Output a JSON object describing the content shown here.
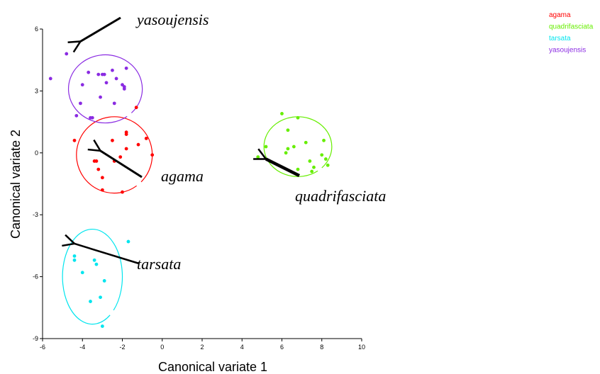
{
  "chart_data": {
    "type": "scatter",
    "title": "",
    "xlabel": "Canonical variate 1",
    "ylabel": "Canonical variate 2",
    "xlim": [
      -6,
      10
    ],
    "ylim": [
      -9,
      6
    ],
    "xticks": [
      -6,
      -4,
      -2,
      0,
      2,
      4,
      6,
      8,
      10
    ],
    "yticks": [
      -9,
      -6,
      -3,
      0,
      3,
      6
    ],
    "grid": false,
    "legend_position": "top-right",
    "series": [
      {
        "name": "agama",
        "color": "#ff0000",
        "points": [
          [
            -4.4,
            0.6
          ],
          [
            -3.4,
            -0.4
          ],
          [
            -3.3,
            -0.4
          ],
          [
            -3.0,
            -1.2
          ],
          [
            -3.2,
            -0.8
          ],
          [
            -3.0,
            -1.8
          ],
          [
            -2.5,
            0.6
          ],
          [
            -2.4,
            -0.4
          ],
          [
            -2.1,
            -0.2
          ],
          [
            -2.0,
            -1.9
          ],
          [
            -1.8,
            0.9
          ],
          [
            -1.8,
            1.0
          ],
          [
            -1.8,
            0.2
          ],
          [
            -1.3,
            2.2
          ],
          [
            -1.2,
            0.4
          ],
          [
            -0.8,
            0.7
          ],
          [
            -0.5,
            -0.1
          ]
        ],
        "ellipse": {
          "cx": -2.4,
          "cy": -0.1,
          "rx": 1.9,
          "ry": 1.85
        }
      },
      {
        "name": "quadrifasciata",
        "color": "#66ee00",
        "points": [
          [
            4.8,
            -0.2
          ],
          [
            5.2,
            0.3
          ],
          [
            6.0,
            1.9
          ],
          [
            6.2,
            0.0
          ],
          [
            6.3,
            1.1
          ],
          [
            6.3,
            0.2
          ],
          [
            6.6,
            0.3
          ],
          [
            6.8,
            1.7
          ],
          [
            6.8,
            -0.8
          ],
          [
            7.2,
            0.5
          ],
          [
            7.4,
            -0.4
          ],
          [
            7.5,
            -0.9
          ],
          [
            7.6,
            -0.7
          ],
          [
            8.0,
            -0.1
          ],
          [
            8.1,
            0.6
          ],
          [
            8.2,
            -0.3
          ],
          [
            8.3,
            -0.6
          ]
        ],
        "ellipse": {
          "cx": 6.8,
          "cy": 0.3,
          "rx": 1.7,
          "ry": 1.45
        }
      },
      {
        "name": "tarsata",
        "color": "#00e5ee",
        "points": [
          [
            -4.4,
            -5.0
          ],
          [
            -4.4,
            -5.2
          ],
          [
            -4.0,
            -5.8
          ],
          [
            -3.4,
            -5.2
          ],
          [
            -3.3,
            -5.4
          ],
          [
            -3.6,
            -7.2
          ],
          [
            -3.1,
            -7.0
          ],
          [
            -3.0,
            -8.4
          ],
          [
            -2.9,
            -6.2
          ],
          [
            -1.7,
            -4.3
          ]
        ],
        "ellipse": {
          "cx": -3.5,
          "cy": -6.0,
          "rx": 1.5,
          "ry": 2.3
        }
      },
      {
        "name": "yasoujensis",
        "color": "#8a2be2",
        "points": [
          [
            -5.6,
            3.6
          ],
          [
            -4.8,
            4.8
          ],
          [
            -4.3,
            1.8
          ],
          [
            -4.1,
            2.4
          ],
          [
            -4.0,
            3.3
          ],
          [
            -3.7,
            3.9
          ],
          [
            -3.6,
            1.7
          ],
          [
            -3.5,
            1.7
          ],
          [
            -3.2,
            3.8
          ],
          [
            -3.1,
            2.7
          ],
          [
            -3.0,
            3.8
          ],
          [
            -2.9,
            3.8
          ],
          [
            -2.8,
            3.4
          ],
          [
            -2.5,
            4.0
          ],
          [
            -2.4,
            2.4
          ],
          [
            -2.3,
            3.6
          ],
          [
            -2.0,
            3.3
          ],
          [
            -1.9,
            3.2
          ],
          [
            -1.9,
            3.1
          ],
          [
            -1.8,
            4.1
          ]
        ],
        "ellipse": {
          "cx": -2.85,
          "cy": 3.1,
          "rx": 1.85,
          "ry": 1.65
        }
      }
    ],
    "annotations": [
      {
        "text": "yasoujensis",
        "pointer_to": [
          -4.1,
          5.4
        ]
      },
      {
        "text": "agama",
        "pointer_to": [
          -3.1,
          0.1
        ]
      },
      {
        "text": "quadrifasciata",
        "pointer_to": [
          5.2,
          -0.3
        ]
      },
      {
        "text": "tarsata",
        "pointer_to": [
          -4.4,
          -4.4
        ]
      }
    ]
  }
}
